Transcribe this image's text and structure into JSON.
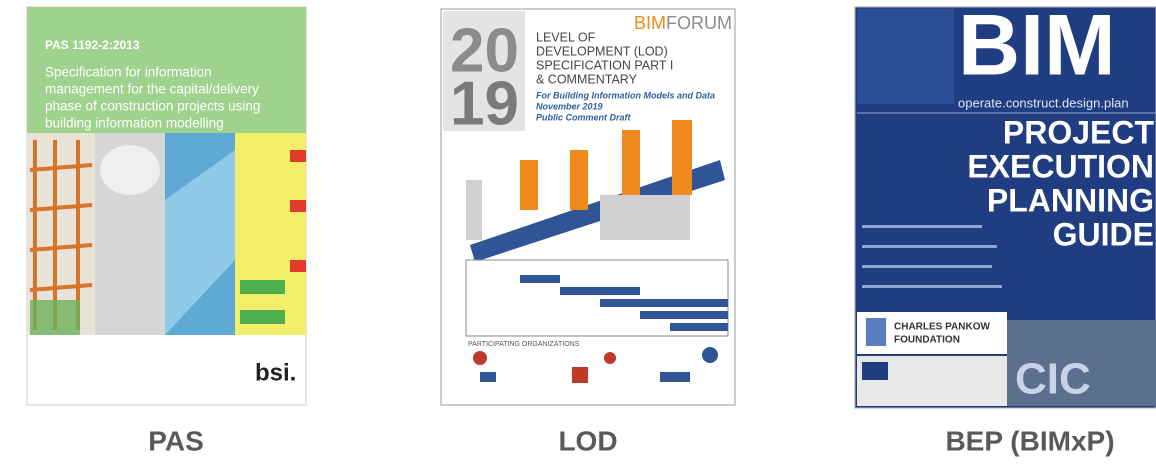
{
  "covers": [
    {
      "label": "PAS",
      "code": "PAS 1192-2:2013",
      "title_lines": [
        "Specification for information",
        "management for the capital/delivery",
        "phase of construction projects using",
        "building information modelling"
      ],
      "logo": "bsi."
    },
    {
      "label": "LOD",
      "year_top": "20",
      "year_bottom": "19",
      "brand_a": "BIM",
      "brand_b": "FORUM",
      "title_lines": [
        "LEVEL OF",
        "DEVELOPMENT (LOD)",
        "SPECIFICATION PART I",
        "& COMMENTARY"
      ],
      "sub_lines": [
        "For Building Information Models and Data",
        "November 2019",
        "Public Comment Draft"
      ],
      "orgs": "PARTICIPATING ORGANIZATIONS"
    },
    {
      "label": "BEP (BIMxP)",
      "big": "BIM",
      "tagline": "operate.construct.design.plan",
      "title_lines": [
        "PROJECT",
        "EXECUTION",
        "PLANNING",
        "GUIDE"
      ],
      "foundation_lines": [
        "CHARLES PANKOW",
        "FOUNDATION"
      ],
      "mark": "CIC"
    }
  ]
}
